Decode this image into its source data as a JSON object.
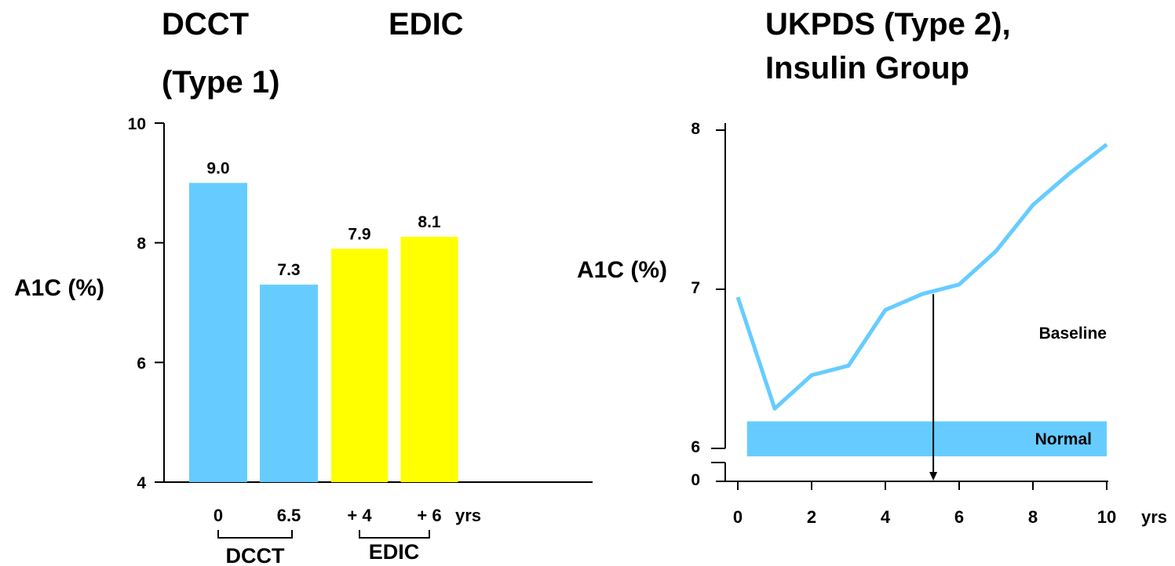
{
  "chart_data": [
    {
      "type": "bar",
      "title_left": [
        "DCCT",
        "(Type 1)"
      ],
      "title_right": "EDIC",
      "ylabel": "A1C (%)",
      "xunit": "yrs",
      "ylim": [
        4,
        10
      ],
      "yticks": [
        "4",
        "6",
        "8",
        "10"
      ],
      "grid": false,
      "legend": "none",
      "categories": [
        "0",
        "6.5",
        "+ 4",
        "+ 6"
      ],
      "values": [
        9.0,
        7.3,
        7.9,
        8.1
      ],
      "data_labels": [
        "9.0",
        "7.3",
        "7.9",
        "8.1"
      ],
      "bar_colors": [
        "#66ccff",
        "#66ccff",
        "#ffff00",
        "#ffff00"
      ],
      "groups": [
        {
          "label": "DCCT",
          "categories": [
            "0",
            "6.5"
          ]
        },
        {
          "label": "EDIC",
          "categories": [
            "+ 4",
            "+ 6"
          ]
        }
      ]
    },
    {
      "type": "line",
      "title": [
        "UKPDS (Type 2),",
        "Insulin Group"
      ],
      "ylabel": "A1C (%)",
      "xunit": "yrs",
      "xlim": [
        0,
        10
      ],
      "xticks": [
        "0",
        "2",
        "4",
        "6",
        "8",
        "10"
      ],
      "ylim": [
        6,
        8
      ],
      "yticks": [
        "0",
        "6",
        "7",
        "8"
      ],
      "axis_break": true,
      "grid": false,
      "legend": "none",
      "color": "#66ccff",
      "series": [
        {
          "x": [
            0,
            1,
            2,
            3,
            4,
            5,
            6,
            7,
            8,
            9,
            10
          ],
          "values": [
            6.95,
            6.25,
            6.46,
            6.52,
            6.87,
            6.97,
            7.03,
            7.24,
            7.53,
            7.73,
            7.91
          ]
        }
      ],
      "normal_band": {
        "label": "Normal",
        "x_range": [
          0.25,
          10
        ],
        "y_range": [
          5.95,
          6.17
        ],
        "color": "#66ccff"
      },
      "baseline_label": "Baseline",
      "marker_x": 5.3
    }
  ]
}
